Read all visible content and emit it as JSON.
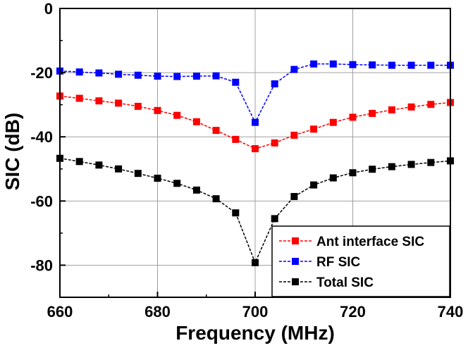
{
  "chart_data": {
    "type": "line",
    "title": "",
    "xlabel": "Frequency (MHz)",
    "ylabel": "SIC (dB)",
    "xlim": [
      660,
      740
    ],
    "ylim": [
      -90,
      0
    ],
    "xticks": [
      660,
      680,
      700,
      720,
      740
    ],
    "yticks": [
      0,
      -20,
      -40,
      -60,
      -80
    ],
    "xtick_labels": [
      "660",
      "680",
      "700",
      "720",
      "740"
    ],
    "ytick_labels": [
      "0",
      "-20",
      "-40",
      "-60",
      "-80"
    ],
    "grid": true,
    "legend_position": "bottom-right",
    "series": [
      {
        "name": "Ant interface SIC",
        "color": "#ff0000",
        "marker": "square",
        "x": [
          660,
          664,
          668,
          672,
          676,
          680,
          684,
          688,
          692,
          696,
          700,
          704,
          708,
          712,
          716,
          720,
          724,
          728,
          732,
          736,
          740
        ],
        "y": [
          -27.3,
          -28.0,
          -28.8,
          -29.5,
          -30.5,
          -31.8,
          -33.3,
          -35.3,
          -38.0,
          -40.8,
          -43.7,
          -41.9,
          -39.5,
          -37.6,
          -35.5,
          -33.9,
          -32.7,
          -31.6,
          -30.7,
          -29.9,
          -29.3
        ]
      },
      {
        "name": "RF SIC",
        "color": "#0000ff",
        "marker": "square",
        "x": [
          660,
          664,
          668,
          672,
          676,
          680,
          684,
          688,
          692,
          696,
          700,
          704,
          708,
          712,
          716,
          720,
          724,
          728,
          732,
          736,
          740
        ],
        "y": [
          -19.5,
          -19.8,
          -20.1,
          -20.5,
          -20.8,
          -21.1,
          -21.2,
          -21.1,
          -21.0,
          -23.0,
          -35.5,
          -23.5,
          -19.0,
          -17.3,
          -17.3,
          -17.5,
          -17.6,
          -17.7,
          -17.7,
          -17.7,
          -17.7
        ]
      },
      {
        "name": "Total SIC",
        "color": "#000000",
        "marker": "square",
        "x": [
          660,
          664,
          668,
          672,
          676,
          680,
          684,
          688,
          692,
          696,
          700,
          704,
          708,
          712,
          716,
          720,
          724,
          728,
          732,
          736,
          740
        ],
        "y": [
          -46.7,
          -47.7,
          -48.8,
          -50.0,
          -51.4,
          -52.9,
          -54.5,
          -56.6,
          -59.3,
          -63.7,
          -79.2,
          -65.5,
          -58.6,
          -55.0,
          -52.8,
          -51.2,
          -50.1,
          -49.3,
          -48.6,
          -48.0,
          -47.5
        ]
      }
    ]
  }
}
